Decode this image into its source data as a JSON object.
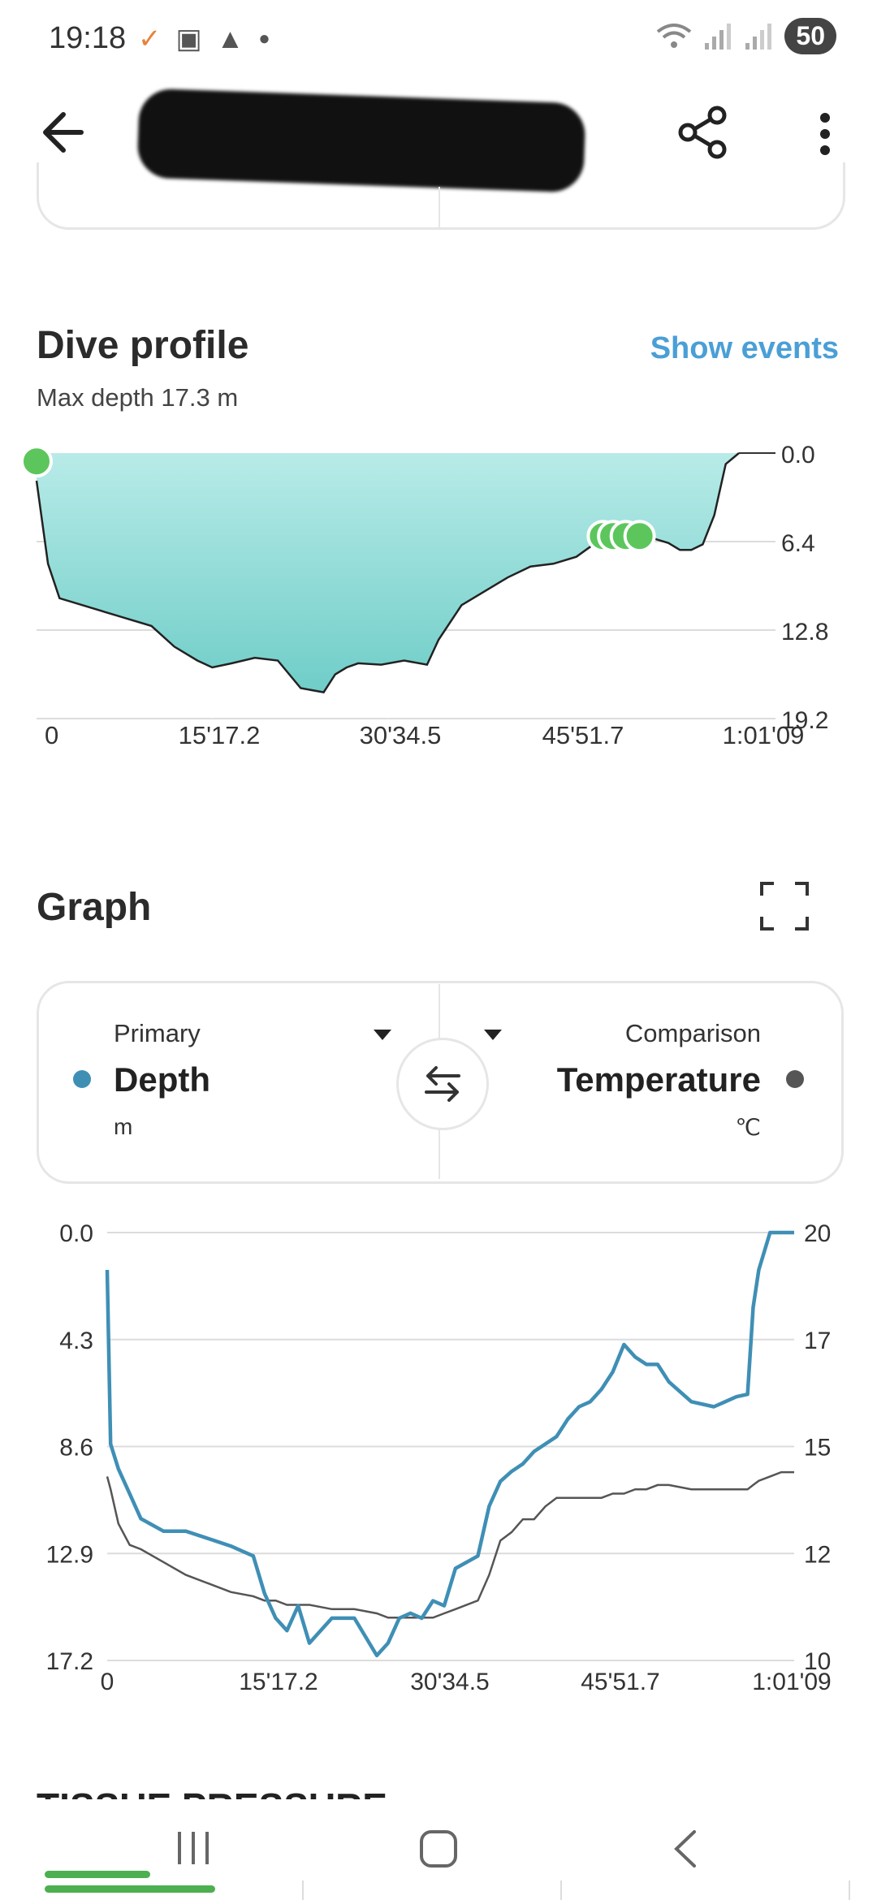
{
  "status": {
    "time": "19:18",
    "battery": "50"
  },
  "dive_profile": {
    "title": "Dive profile",
    "show_events": "Show events",
    "max_depth": "Max depth 17.3 m",
    "y_ticks": [
      "0.0",
      "6.4",
      "12.8",
      "19.2"
    ],
    "x_ticks": [
      "0",
      "15'17.2",
      "30'34.5",
      "45'51.7",
      "1:01'09"
    ]
  },
  "graph": {
    "title": "Graph",
    "primary_caption": "Primary",
    "primary_name": "Depth",
    "primary_unit": "m",
    "comparison_caption": "Comparison",
    "comparison_name": "Temperature",
    "comparison_unit": "℃",
    "y_left_ticks": [
      "0.0",
      "4.3",
      "8.6",
      "12.9",
      "17.2"
    ],
    "y_right_ticks": [
      "20",
      "17",
      "15",
      "12",
      "10"
    ],
    "x_ticks": [
      "0",
      "15'17.2",
      "30'34.5",
      "45'51.7",
      "1:01'09"
    ]
  },
  "tissue_title": "TISSUE PRESSURE",
  "colors": {
    "depth_line": "#3f8fb5",
    "temp_line": "#555555",
    "profile_fill": "#7fd4cf",
    "marker": "#5cc65c",
    "link": "#4a9fd6"
  },
  "chart_data": [
    {
      "type": "area",
      "title": "Dive profile",
      "xlabel": "",
      "ylabel": "",
      "ylim": [
        0,
        19.2
      ],
      "y_inverted": true,
      "grid": true,
      "x": [
        0,
        1,
        2,
        4,
        6,
        8,
        10,
        12,
        14,
        15.3,
        17,
        19,
        21,
        23,
        25,
        26,
        27,
        28,
        30,
        32,
        34,
        35,
        37,
        39,
        41,
        43,
        45,
        47,
        49,
        51,
        53,
        55,
        56,
        57,
        58,
        59,
        60,
        61.15
      ],
      "series": [
        {
          "values": [
            2,
            8,
            10.5,
            11,
            11.5,
            12,
            12.5,
            14,
            15,
            15.5,
            15.2,
            14.8,
            15,
            17,
            17.3,
            16,
            15.5,
            15.2,
            15.3,
            15,
            15.3,
            13.5,
            11,
            10,
            9,
            8.2,
            8,
            7.5,
            6.3,
            6.0,
            6.0,
            6.5,
            7.0,
            7.0,
            6.6,
            4.5,
            0.8,
            0.0
          ]
        }
      ],
      "events_x": [
        0,
        49.3,
        50.2,
        51.3,
        52.5
      ]
    },
    {
      "type": "line",
      "title": "",
      "xlabel": "",
      "ylabel": "",
      "ylim": [
        0,
        17.2
      ],
      "y_inverted": true,
      "y2lim": [
        10,
        20
      ],
      "grid": true,
      "x": [
        0,
        0.3,
        1,
        2,
        3,
        5,
        7,
        9,
        11,
        13,
        14,
        15,
        16,
        17,
        18,
        20,
        22,
        24,
        25,
        26,
        27,
        28,
        29,
        30,
        31,
        33,
        34,
        35,
        36,
        37,
        38,
        39,
        40,
        41,
        42,
        43,
        44,
        45,
        46,
        47,
        48,
        49,
        50,
        52,
        54,
        56,
        57,
        57.5,
        58,
        59,
        60,
        61.15
      ],
      "series": [
        {
          "name": "Depth",
          "axis": "left",
          "values": [
            1.5,
            8.5,
            9.5,
            10.5,
            11.5,
            12,
            12,
            12.3,
            12.6,
            13,
            14.5,
            15.5,
            16,
            15,
            16.5,
            15.5,
            15.5,
            17.0,
            16.5,
            15.5,
            15.3,
            15.5,
            14.8,
            15.0,
            13.5,
            13,
            11,
            10,
            9.6,
            9.3,
            8.8,
            8.5,
            8.2,
            7.5,
            7.0,
            6.8,
            6.3,
            5.6,
            4.5,
            5.0,
            5.3,
            5.3,
            6.0,
            6.8,
            7.0,
            6.6,
            6.5,
            3.0,
            1.5,
            0.0,
            0.0,
            0.0
          ]
        },
        {
          "name": "Temperature",
          "axis": "right",
          "values": [
            14.3,
            14.0,
            13.2,
            12.7,
            12.6,
            12.3,
            12.0,
            11.8,
            11.6,
            11.5,
            11.4,
            11.4,
            11.3,
            11.3,
            11.3,
            11.2,
            11.2,
            11.1,
            11.0,
            11.0,
            11.0,
            11.0,
            11.0,
            11.1,
            11.2,
            11.4,
            12.0,
            12.8,
            13.0,
            13.3,
            13.3,
            13.6,
            13.8,
            13.8,
            13.8,
            13.8,
            13.8,
            13.9,
            13.9,
            14.0,
            14.0,
            14.1,
            14.1,
            14.0,
            14.0,
            14.0,
            14.0,
            14.1,
            14.2,
            14.3,
            14.4,
            14.4
          ]
        }
      ]
    }
  ]
}
